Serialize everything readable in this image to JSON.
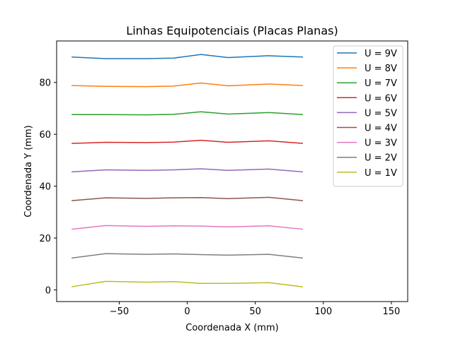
{
  "chart_data": {
    "type": "line",
    "title": "Linhas Equipotenciais (Placas Planas)",
    "xlabel": "Coordenada X (mm)",
    "ylabel": "Coordenada Y (mm)",
    "xlim": [
      -96,
      162
    ],
    "ylim": [
      -4.5,
      96
    ],
    "xticks": [
      -50,
      0,
      50,
      100,
      150
    ],
    "yticks": [
      0,
      20,
      40,
      60,
      80
    ],
    "grid": false,
    "legend_position": "top-right",
    "x": [
      -85,
      -60,
      -30,
      -10,
      10,
      30,
      60,
      85
    ],
    "series": [
      {
        "name": "U = 9V",
        "color": "#1f77b4",
        "values": [
          89.8,
          89.2,
          89.2,
          89.4,
          90.8,
          89.6,
          90.3,
          89.8
        ]
      },
      {
        "name": "U = 8V",
        "color": "#ff7f0e",
        "values": [
          78.8,
          78.5,
          78.4,
          78.6,
          79.8,
          78.7,
          79.4,
          78.8
        ]
      },
      {
        "name": "U = 7V",
        "color": "#2ca02c",
        "values": [
          67.6,
          67.6,
          67.5,
          67.7,
          68.7,
          67.8,
          68.4,
          67.6
        ]
      },
      {
        "name": "U = 6V",
        "color": "#d62728",
        "values": [
          56.5,
          56.9,
          56.8,
          57.0,
          57.7,
          56.9,
          57.5,
          56.5
        ]
      },
      {
        "name": "U = 5V",
        "color": "#9467bd",
        "values": [
          45.5,
          46.3,
          46.1,
          46.3,
          46.7,
          46.1,
          46.6,
          45.5
        ]
      },
      {
        "name": "U = 4V",
        "color": "#8c564b",
        "values": [
          34.4,
          35.5,
          35.3,
          35.5,
          35.6,
          35.2,
          35.7,
          34.4
        ]
      },
      {
        "name": "U = 3V",
        "color": "#e377c2",
        "values": [
          23.4,
          24.8,
          24.5,
          24.7,
          24.6,
          24.3,
          24.7,
          23.4
        ]
      },
      {
        "name": "U = 2V",
        "color": "#7f7f7f",
        "values": [
          12.3,
          14.0,
          13.7,
          13.9,
          13.6,
          13.4,
          13.7,
          12.3
        ]
      },
      {
        "name": "U = 1V",
        "color": "#bcbd22",
        "values": [
          1.2,
          3.3,
          3.0,
          3.2,
          2.5,
          2.5,
          2.8,
          1.2
        ]
      }
    ]
  }
}
